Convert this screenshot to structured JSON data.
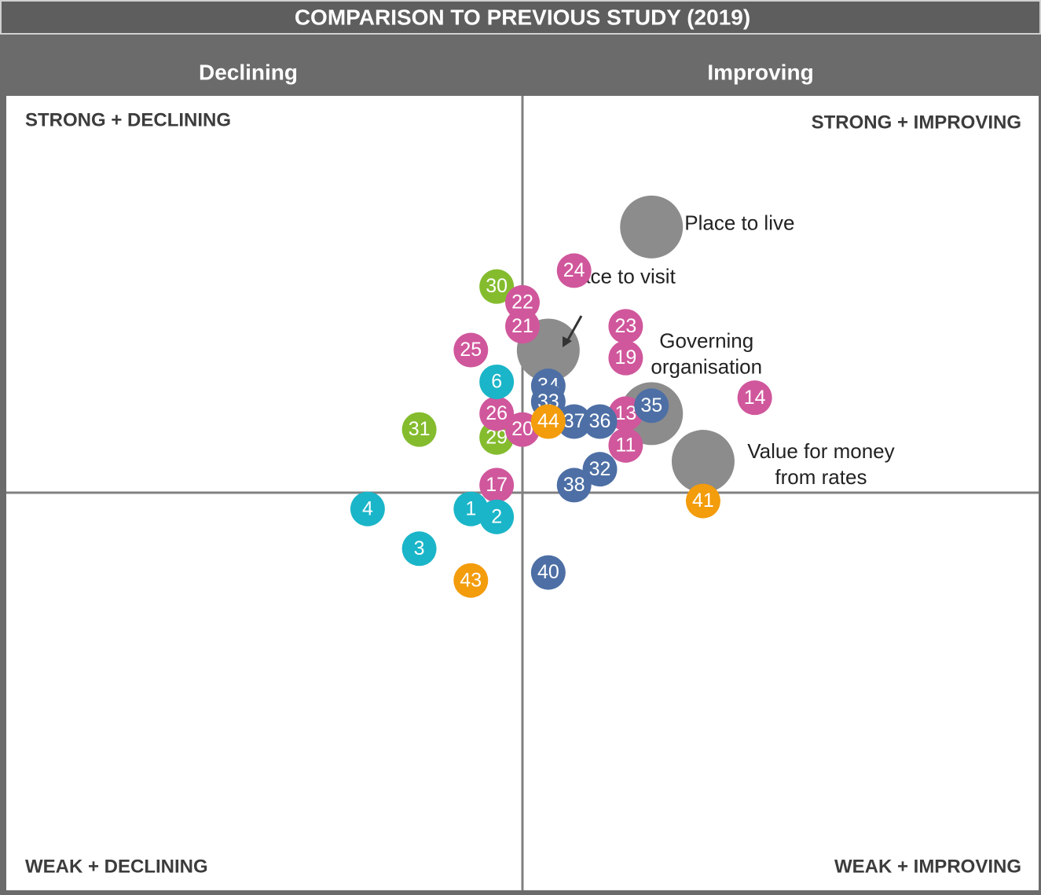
{
  "chart_data": {
    "type": "scatter",
    "title": "COMPARISON TO PREVIOUS STUDY (2019)",
    "column_headers": [
      "Declining",
      "Improving"
    ],
    "quadrant_labels": {
      "top_left": "STRONG + DECLINING",
      "top_right": "STRONG + IMPROVING",
      "bottom_left": "WEAK + DECLINING",
      "bottom_right": "WEAK + IMPROVING"
    },
    "xlim": [
      -10,
      10
    ],
    "ylim": [
      -10,
      10
    ],
    "series": [
      {
        "color": "#8c8c8c",
        "label_position": "outside",
        "points": [
          {
            "label": [
              "Place to live"
            ],
            "x": 2.5,
            "y": 6.7
          },
          {
            "label": [
              "Place to visit"
            ],
            "x": 0.5,
            "y": 3.6
          },
          {
            "label": [
              "Governing",
              "organisation"
            ],
            "x": 2.5,
            "y": 2.0
          },
          {
            "label": [
              "Value for money",
              "from rates"
            ],
            "x": 3.5,
            "y": 0.8
          }
        ]
      },
      {
        "color": "#84bc2e",
        "label_position": "inside",
        "points": [
          {
            "label": "30",
            "x": -0.5,
            "y": 5.2
          },
          {
            "label": "31",
            "x": -2.0,
            "y": 1.6
          },
          {
            "label": "29",
            "x": -0.5,
            "y": 1.4
          }
        ]
      },
      {
        "color": "#d0579c",
        "label_position": "inside",
        "points": [
          {
            "label": "24",
            "x": 1.0,
            "y": 5.6
          },
          {
            "label": "22",
            "x": 0.0,
            "y": 4.8
          },
          {
            "label": "21",
            "x": 0.0,
            "y": 4.2
          },
          {
            "label": "23",
            "x": 2.0,
            "y": 4.2
          },
          {
            "label": "25",
            "x": -1.0,
            "y": 3.6
          },
          {
            "label": "19",
            "x": 2.0,
            "y": 3.4
          },
          {
            "label": "14",
            "x": 4.5,
            "y": 2.4
          },
          {
            "label": "13",
            "x": 2.0,
            "y": 2.0
          },
          {
            "label": "26",
            "x": -0.5,
            "y": 2.0
          },
          {
            "label": "20",
            "x": 0.0,
            "y": 1.6
          },
          {
            "label": "11",
            "x": 2.0,
            "y": 1.2
          },
          {
            "label": "17",
            "x": -0.5,
            "y": 0.2
          }
        ]
      },
      {
        "color": "#1ab5c8",
        "label_position": "inside",
        "points": [
          {
            "label": "6",
            "x": -0.5,
            "y": 2.8
          },
          {
            "label": "4",
            "x": -3.0,
            "y": -0.4
          },
          {
            "label": "1",
            "x": -1.0,
            "y": -0.4
          },
          {
            "label": "2",
            "x": -0.5,
            "y": -0.6
          },
          {
            "label": "3",
            "x": -2.0,
            "y": -1.4
          }
        ]
      },
      {
        "color": "#4d6fa5",
        "label_position": "inside",
        "points": [
          {
            "label": "37",
            "x": 1.0,
            "y": 1.8
          },
          {
            "label": "34",
            "x": 0.5,
            "y": 2.7
          },
          {
            "label": "33",
            "x": 0.5,
            "y": 2.3
          },
          {
            "label": "35",
            "x": 2.5,
            "y": 2.2
          },
          {
            "label": "36",
            "x": 1.5,
            "y": 1.8
          },
          {
            "label": "32",
            "x": 1.5,
            "y": 0.6
          },
          {
            "label": "38",
            "x": 1.0,
            "y": 0.2
          },
          {
            "label": "40",
            "x": 0.5,
            "y": -2.0
          }
        ]
      },
      {
        "color": "#f39c0c",
        "label_position": "inside",
        "points": [
          {
            "label": "44",
            "x": 0.5,
            "y": 1.8
          },
          {
            "label": "41",
            "x": 3.5,
            "y": -0.2
          },
          {
            "label": "43",
            "x": -1.0,
            "y": -2.2
          }
        ]
      }
    ]
  }
}
